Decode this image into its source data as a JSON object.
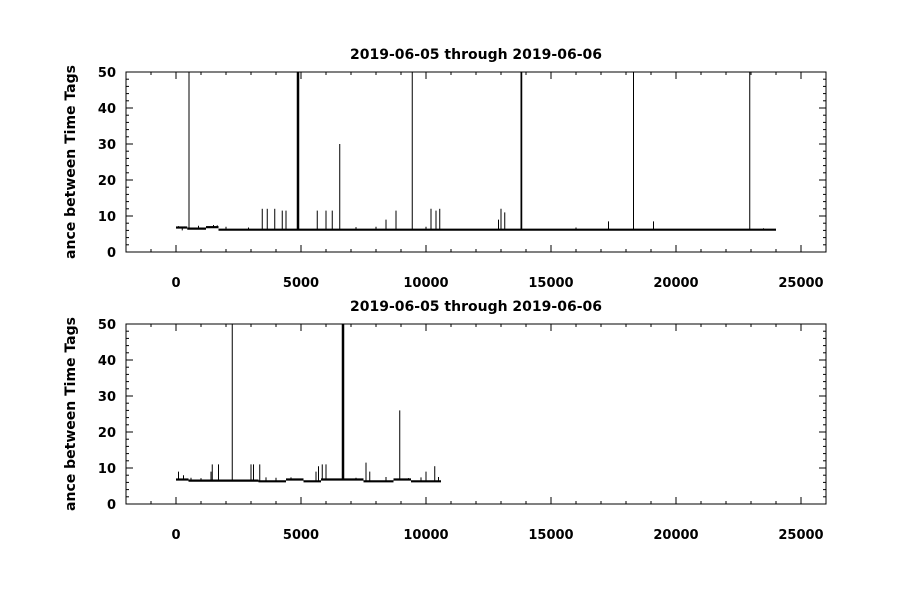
{
  "chart_data": [
    {
      "type": "line",
      "title": "2019-06-05 through 2019-06-06",
      "xlabel": "",
      "ylabel": "ance between Time Tags",
      "xlim": [
        -2000,
        26000
      ],
      "ylim": [
        0,
        50
      ],
      "x_ticks": [
        0,
        5000,
        10000,
        15000,
        20000,
        25000
      ],
      "x_tick_labels": [
        "0",
        "5000",
        "10000",
        "15000",
        "20000",
        "25000"
      ],
      "y_ticks": [
        0,
        10,
        20,
        30,
        40,
        50
      ],
      "y_tick_labels": [
        "0",
        "10",
        "20",
        "30",
        "40",
        "50"
      ],
      "grid": false,
      "series": [
        {
          "baseline_segments": [
            {
              "x_start": 0,
              "x_end": 450,
              "y": 6.8
            },
            {
              "x_start": 450,
              "x_end": 1200,
              "y": 6.5
            },
            {
              "x_start": 1200,
              "x_end": 1700,
              "y": 6.9
            },
            {
              "x_start": 1700,
              "x_end": 24000,
              "y": 6.2
            }
          ],
          "spikes": [
            {
              "x": 100,
              "y": 7.2
            },
            {
              "x": 250,
              "y": 6.0
            },
            {
              "x": 350,
              "y": 7.1
            },
            {
              "x": 520,
              "y": 50
            },
            {
              "x": 900,
              "y": 7.3
            },
            {
              "x": 1500,
              "y": 7.5
            },
            {
              "x": 1650,
              "y": 7.4
            },
            {
              "x": 2000,
              "y": 7.0
            },
            {
              "x": 2900,
              "y": 6.8
            },
            {
              "x": 3450,
              "y": 12
            },
            {
              "x": 3650,
              "y": 12
            },
            {
              "x": 3950,
              "y": 12
            },
            {
              "x": 4250,
              "y": 11.5
            },
            {
              "x": 4400,
              "y": 11.5
            },
            {
              "x": 4850,
              "y": 50
            },
            {
              "x": 4880,
              "y": 50
            },
            {
              "x": 4910,
              "y": 50
            },
            {
              "x": 5650,
              "y": 11.5
            },
            {
              "x": 6000,
              "y": 11.5
            },
            {
              "x": 6250,
              "y": 11.5
            },
            {
              "x": 6550,
              "y": 30
            },
            {
              "x": 7200,
              "y": 6.9
            },
            {
              "x": 8000,
              "y": 7.0
            },
            {
              "x": 8400,
              "y": 9.0
            },
            {
              "x": 8800,
              "y": 11.5
            },
            {
              "x": 9450,
              "y": 50
            },
            {
              "x": 10000,
              "y": 7.0
            },
            {
              "x": 10200,
              "y": 12
            },
            {
              "x": 10400,
              "y": 11.5
            },
            {
              "x": 10550,
              "y": 12
            },
            {
              "x": 12900,
              "y": 9.0
            },
            {
              "x": 13000,
              "y": 12
            },
            {
              "x": 13150,
              "y": 11
            },
            {
              "x": 13800,
              "y": 50
            },
            {
              "x": 13830,
              "y": 50
            },
            {
              "x": 16000,
              "y": 6.8
            },
            {
              "x": 17300,
              "y": 8.5
            },
            {
              "x": 18300,
              "y": 50
            },
            {
              "x": 19100,
              "y": 8.5
            },
            {
              "x": 22950,
              "y": 50
            },
            {
              "x": 23500,
              "y": 6.6
            }
          ]
        }
      ]
    },
    {
      "type": "line",
      "title": "2019-06-05 through 2019-06-06",
      "xlabel": "",
      "ylabel": "ance between Time Tags",
      "xlim": [
        -2000,
        26000
      ],
      "ylim": [
        0,
        50
      ],
      "x_ticks": [
        0,
        5000,
        10000,
        15000,
        20000,
        25000
      ],
      "x_tick_labels": [
        "0",
        "5000",
        "10000",
        "15000",
        "20000",
        "25000"
      ],
      "y_ticks": [
        0,
        10,
        20,
        30,
        40,
        50
      ],
      "y_tick_labels": [
        "0",
        "10",
        "20",
        "30",
        "40",
        "50"
      ],
      "grid": false,
      "series": [
        {
          "baseline_segments": [
            {
              "x_start": 0,
              "x_end": 500,
              "y": 6.8
            },
            {
              "x_start": 500,
              "x_end": 3300,
              "y": 6.5
            },
            {
              "x_start": 3300,
              "x_end": 4400,
              "y": 6.3
            },
            {
              "x_start": 4400,
              "x_end": 5100,
              "y": 6.8
            },
            {
              "x_start": 5100,
              "x_end": 5800,
              "y": 6.3
            },
            {
              "x_start": 5800,
              "x_end": 7500,
              "y": 6.8
            },
            {
              "x_start": 7500,
              "x_end": 8700,
              "y": 6.3
            },
            {
              "x_start": 8700,
              "x_end": 9400,
              "y": 6.8
            },
            {
              "x_start": 9400,
              "x_end": 10600,
              "y": 6.3
            }
          ],
          "spikes": [
            {
              "x": 100,
              "y": 9.0
            },
            {
              "x": 300,
              "y": 8.0
            },
            {
              "x": 600,
              "y": 7.3
            },
            {
              "x": 1000,
              "y": 7.2
            },
            {
              "x": 1400,
              "y": 9.0
            },
            {
              "x": 1450,
              "y": 11
            },
            {
              "x": 1700,
              "y": 11
            },
            {
              "x": 2250,
              "y": 50
            },
            {
              "x": 3000,
              "y": 11
            },
            {
              "x": 3100,
              "y": 11
            },
            {
              "x": 3350,
              "y": 11
            },
            {
              "x": 3600,
              "y": 7.4
            },
            {
              "x": 4000,
              "y": 7.3
            },
            {
              "x": 4600,
              "y": 7.4
            },
            {
              "x": 5600,
              "y": 9.0
            },
            {
              "x": 5700,
              "y": 10.5
            },
            {
              "x": 5850,
              "y": 11
            },
            {
              "x": 6000,
              "y": 11
            },
            {
              "x": 6650,
              "y": 50
            },
            {
              "x": 6680,
              "y": 50
            },
            {
              "x": 6710,
              "y": 50
            },
            {
              "x": 7200,
              "y": 7.3
            },
            {
              "x": 7600,
              "y": 11.5
            },
            {
              "x": 7750,
              "y": 9.0
            },
            {
              "x": 8400,
              "y": 7.5
            },
            {
              "x": 8950,
              "y": 26
            },
            {
              "x": 9300,
              "y": 7.2
            },
            {
              "x": 9800,
              "y": 7.4
            },
            {
              "x": 10000,
              "y": 9.0
            },
            {
              "x": 10350,
              "y": 10.5
            },
            {
              "x": 10500,
              "y": 7.5
            }
          ]
        }
      ]
    }
  ]
}
